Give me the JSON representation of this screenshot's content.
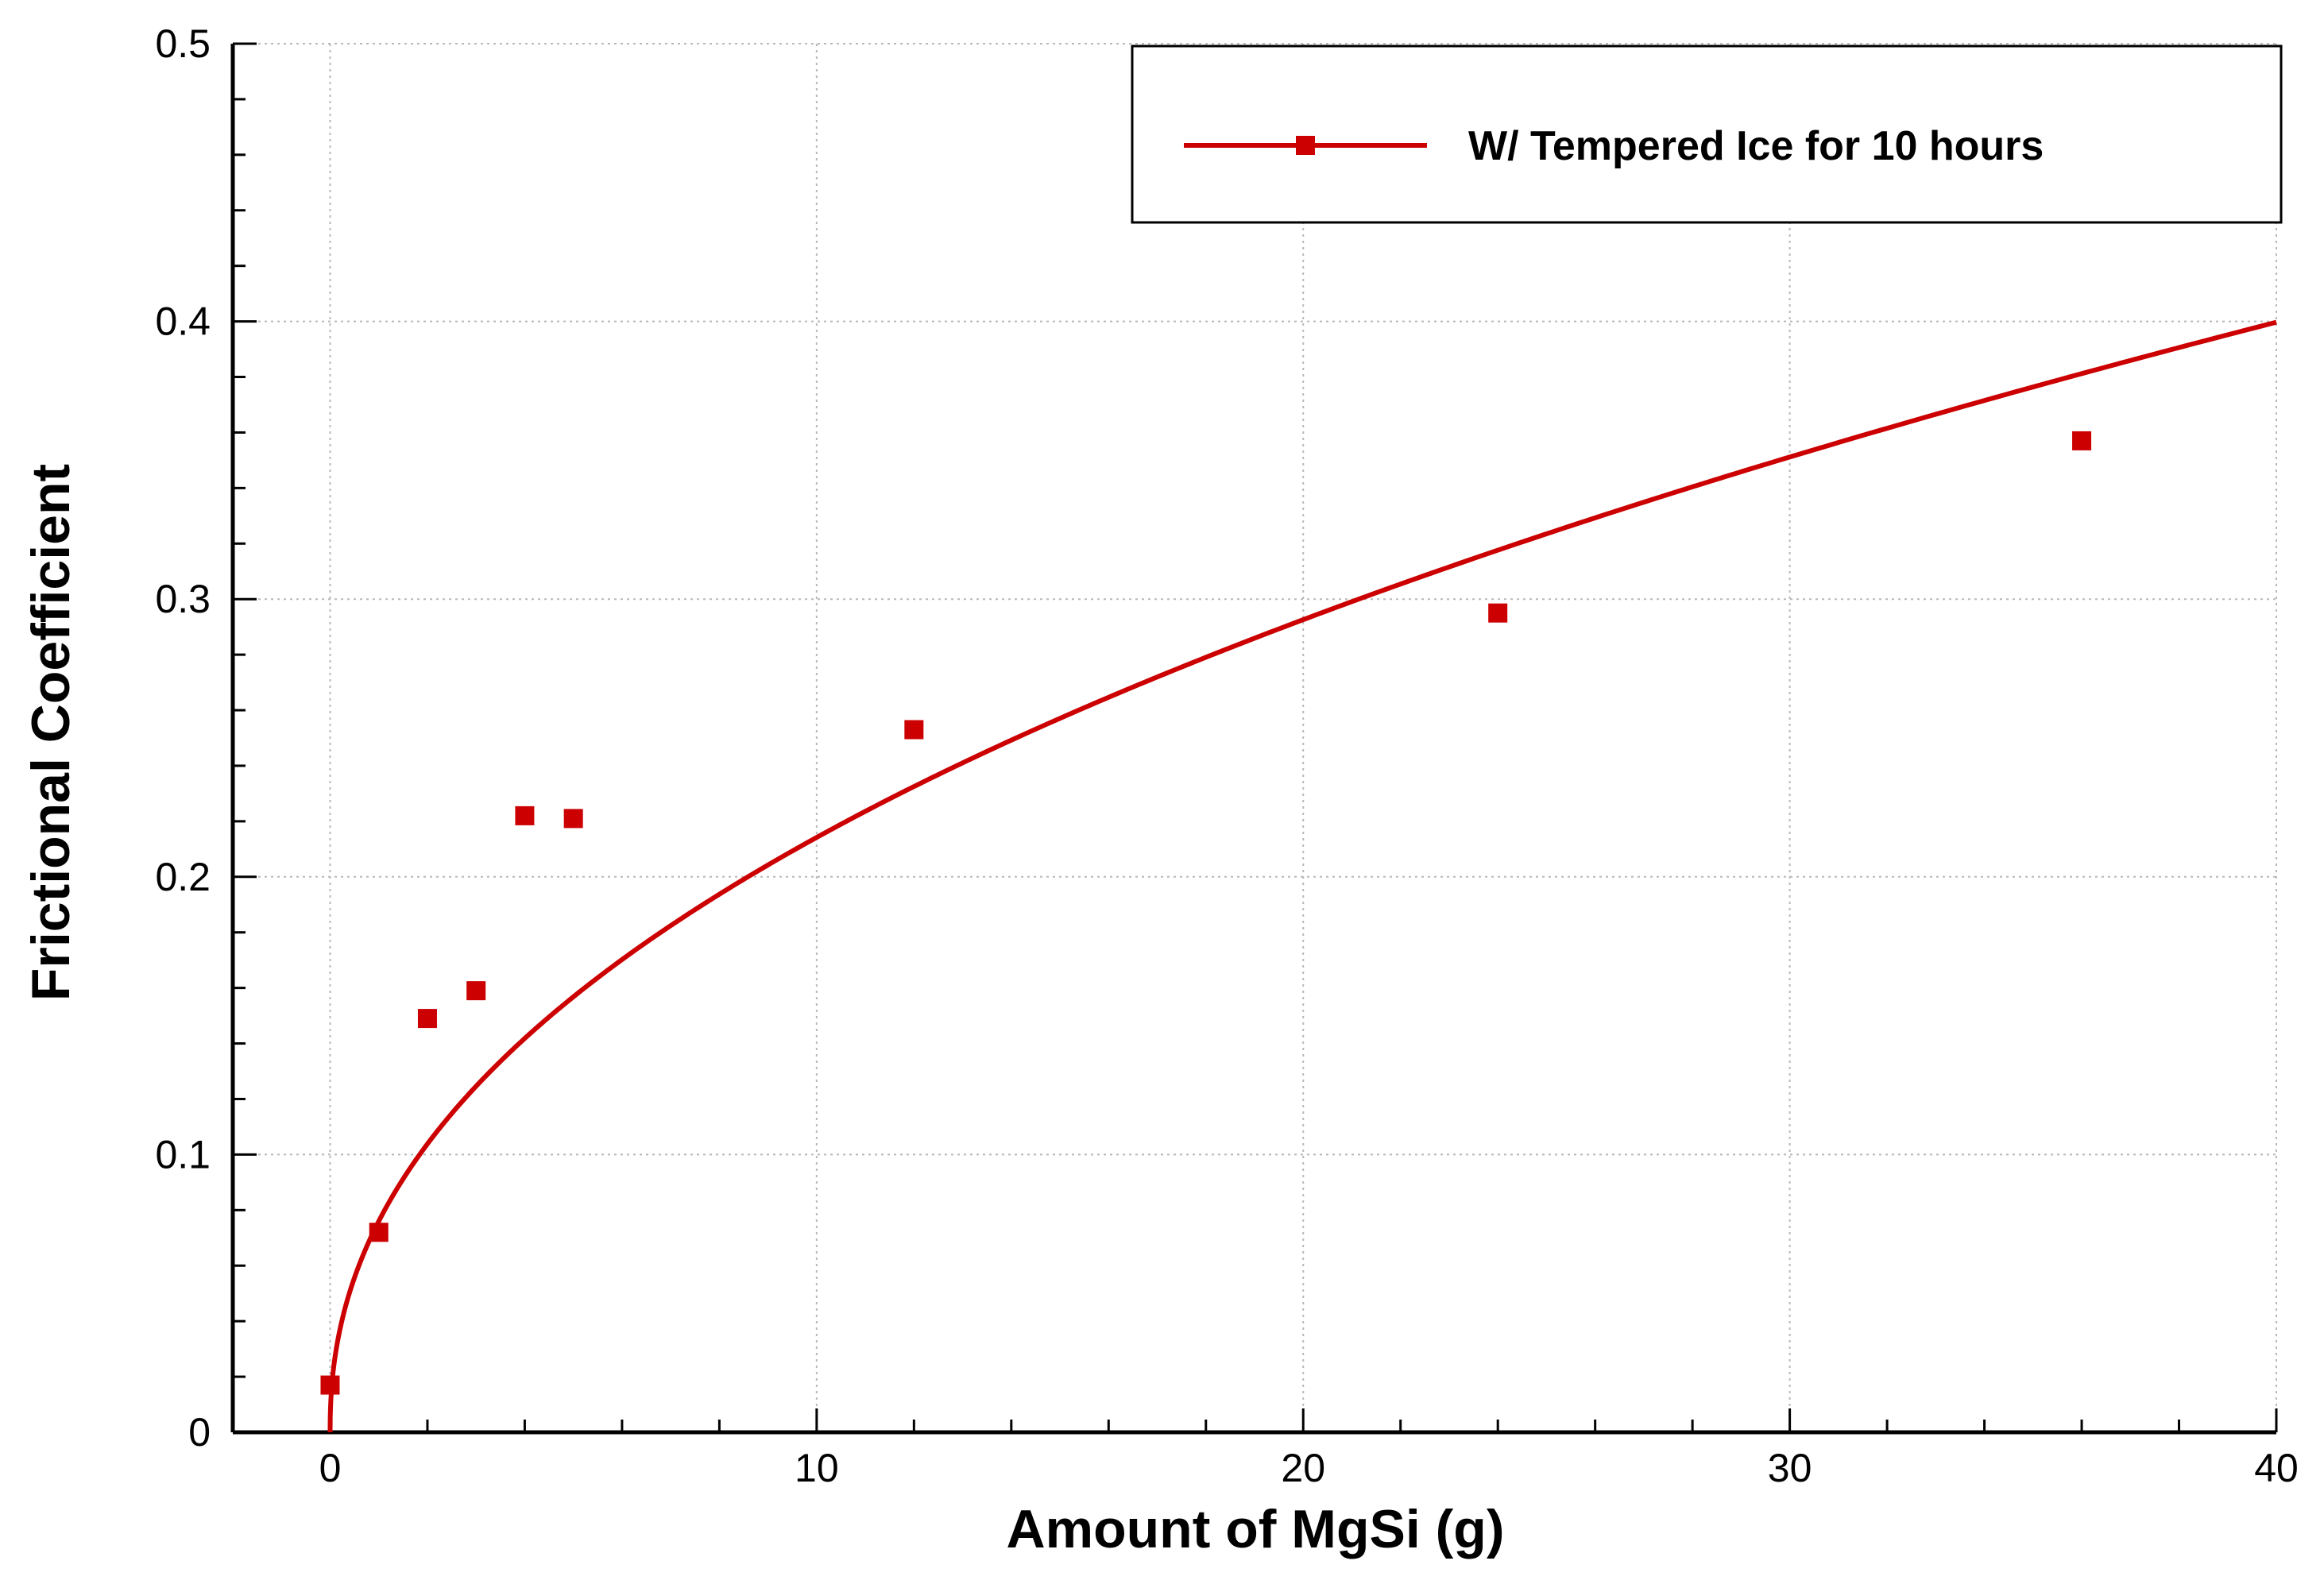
{
  "chart_data": {
    "type": "scatter",
    "xlabel": "Amount of MgSi (g)",
    "ylabel": "Frictional Coefficient",
    "xlim": [
      -2,
      40
    ],
    "ylim": [
      0,
      0.5
    ],
    "x_ticks": [
      0,
      10,
      20,
      30,
      40
    ],
    "x_tick_labels": [
      "0",
      "10",
      "20",
      "30",
      "40"
    ],
    "y_ticks": [
      0,
      0.1,
      0.2,
      0.3,
      0.4,
      0.5
    ],
    "y_tick_labels": [
      "0",
      "0.1",
      "0.2",
      "0.3",
      "0.4",
      "0.5"
    ],
    "grid": true,
    "legend_position": "top-right",
    "series": [
      {
        "name": "W/ Tempered Ice for 10 hours",
        "color": "#cc0000",
        "marker": "square",
        "points": [
          {
            "x": 0,
            "y": 0.017
          },
          {
            "x": 1,
            "y": 0.072
          },
          {
            "x": 2,
            "y": 0.149
          },
          {
            "x": 3,
            "y": 0.159
          },
          {
            "x": 4,
            "y": 0.222
          },
          {
            "x": 5,
            "y": 0.221
          },
          {
            "x": 12,
            "y": 0.253
          },
          {
            "x": 24,
            "y": 0.295
          },
          {
            "x": 36,
            "y": 0.357
          }
        ],
        "fit_curve": {
          "form": "power",
          "a": 0.076,
          "b": 0.45,
          "x_range": [
            0,
            40
          ]
        }
      }
    ]
  }
}
